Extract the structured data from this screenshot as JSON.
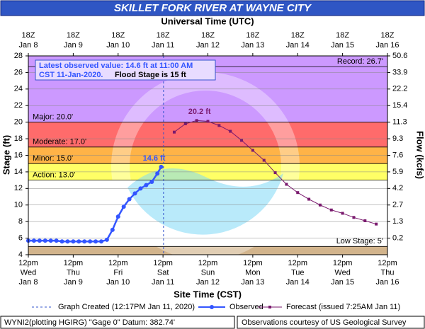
{
  "chart_data": {
    "type": "line",
    "title": "SKILLET FORK RIVER AT WAYNE CITY",
    "top_axis_label": "Universal Time (UTC)",
    "xlabel": "Site Time (CST)",
    "ylabel": "Stage (ft)",
    "y2label": "Flow (kcfs)",
    "xlim": [
      "2020-01-08T12:00",
      "2020-01-16T12:00"
    ],
    "xticks": [
      {
        "value": "2020-01-08T12:00",
        "label": [
          "12pm",
          "Wed",
          "Jan 8"
        ]
      },
      {
        "value": "2020-01-09T12:00",
        "label": [
          "12pm",
          "Thu",
          "Jan 9"
        ]
      },
      {
        "value": "2020-01-10T12:00",
        "label": [
          "12pm",
          "Fri",
          "Jan 10"
        ]
      },
      {
        "value": "2020-01-11T12:00",
        "label": [
          "12pm",
          "Sat",
          "Jan 11"
        ]
      },
      {
        "value": "2020-01-12T12:00",
        "label": [
          "12pm",
          "Sun",
          "Jan 12"
        ]
      },
      {
        "value": "2020-01-13T12:00",
        "label": [
          "12pm",
          "Mon",
          "Jan 13"
        ]
      },
      {
        "value": "2020-01-14T12:00",
        "label": [
          "12pm",
          "Tue",
          "Jan 14"
        ]
      },
      {
        "value": "2020-01-15T12:00",
        "label": [
          "12pm",
          "Wed",
          "Jan 15"
        ]
      },
      {
        "value": "2020-01-16T12:00",
        "label": [
          "12pm",
          "Thu",
          "Jan 16"
        ]
      }
    ],
    "x2ticks": [
      {
        "value": "2020-01-08T12:00",
        "label": [
          "18Z",
          "Jan 8"
        ]
      },
      {
        "value": "2020-01-09T12:00",
        "label": [
          "18Z",
          "Jan 9"
        ]
      },
      {
        "value": "2020-01-10T12:00",
        "label": [
          "18Z",
          "Jan 10"
        ]
      },
      {
        "value": "2020-01-11T12:00",
        "label": [
          "18Z",
          "Jan 11"
        ]
      },
      {
        "value": "2020-01-12T12:00",
        "label": [
          "18Z",
          "Jan 12"
        ]
      },
      {
        "value": "2020-01-13T12:00",
        "label": [
          "18Z",
          "Jan 13"
        ]
      },
      {
        "value": "2020-01-14T12:00",
        "label": [
          "18Z",
          "Jan 14"
        ]
      },
      {
        "value": "2020-01-15T12:00",
        "label": [
          "18Z",
          "Jan 15"
        ]
      },
      {
        "value": "2020-01-16T12:00",
        "label": [
          "18Z",
          "Jan 16"
        ]
      }
    ],
    "ylim": [
      4,
      28
    ],
    "yticks": [
      4,
      6,
      8,
      10,
      12,
      14,
      16,
      18,
      20,
      22,
      24,
      26,
      28
    ],
    "y2ticks": [
      0.2,
      1.3,
      2.7,
      4.2,
      5.9,
      7.6,
      9.3,
      11.3,
      15.4,
      22.2,
      33.9,
      50.6
    ],
    "grid": true,
    "stages": [
      {
        "label": "Record: 26.7'",
        "value": 26.7
      },
      {
        "label": "Major: 20.0'",
        "value": 20,
        "color": "#cc99ff"
      },
      {
        "label": "Moderate: 17.0'",
        "value": 17,
        "color": "#ff6b6b"
      },
      {
        "label": "Minor: 15.0'",
        "value": 15,
        "color": "#ffb347"
      },
      {
        "label": "Action: 13.0'",
        "value": 13,
        "color": "#ffff66"
      },
      {
        "label": "Low Stage: 5'",
        "value": 5,
        "color": "#d2b48c"
      }
    ],
    "created": "2020-01-11T12:17",
    "created_label": "Graph Created (12:17PM Jan 11, 2020)",
    "annotation": [
      "Latest observed value: 14.6 ft at 11:00 AM",
      "CST 11-Jan-2020.",
      "Flood Stage is 15 ft"
    ],
    "series": [
      {
        "name": "Observed",
        "color": "#3355ff",
        "marker": "circle",
        "x": [
          "2020-01-08T12:00",
          "2020-01-08T15:00",
          "2020-01-08T18:00",
          "2020-01-08T21:00",
          "2020-01-09T00:00",
          "2020-01-09T03:00",
          "2020-01-09T06:00",
          "2020-01-09T09:00",
          "2020-01-09T12:00",
          "2020-01-09T15:00",
          "2020-01-09T18:00",
          "2020-01-09T21:00",
          "2020-01-10T00:00",
          "2020-01-10T03:00",
          "2020-01-10T06:00",
          "2020-01-10T09:00",
          "2020-01-10T12:00",
          "2020-01-10T15:00",
          "2020-01-10T18:00",
          "2020-01-10T21:00",
          "2020-01-11T00:00",
          "2020-01-11T03:00",
          "2020-01-11T06:00",
          "2020-01-11T09:00",
          "2020-01-11T11:00"
        ],
        "values": [
          5.7,
          5.7,
          5.7,
          5.7,
          5.7,
          5.7,
          5.6,
          5.6,
          5.6,
          5.6,
          5.6,
          5.6,
          5.6,
          5.6,
          5.8,
          7.0,
          8.6,
          9.8,
          10.7,
          11.4,
          12.0,
          12.4,
          12.8,
          13.8,
          14.6
        ],
        "value_labels": [
          null,
          null,
          null,
          null,
          null,
          null,
          null,
          null,
          null,
          null,
          null,
          null,
          null,
          null,
          null,
          null,
          null,
          null,
          null,
          null,
          null,
          null,
          null,
          null,
          "14.6 ft"
        ]
      },
      {
        "name": "Forecast (issued 7:25AM Jan 11)",
        "color": "#7a1a6e",
        "marker": "square",
        "x": [
          "2020-01-11T18:00",
          "2020-01-12T00:00",
          "2020-01-12T06:00",
          "2020-01-12T12:00",
          "2020-01-12T18:00",
          "2020-01-13T00:00",
          "2020-01-13T06:00",
          "2020-01-13T12:00",
          "2020-01-13T18:00",
          "2020-01-14T00:00",
          "2020-01-14T06:00",
          "2020-01-14T12:00",
          "2020-01-14T18:00",
          "2020-01-15T00:00",
          "2020-01-15T06:00",
          "2020-01-15T12:00",
          "2020-01-15T18:00",
          "2020-01-16T00:00",
          "2020-01-16T06:00"
        ],
        "values": [
          18.8,
          19.8,
          20.2,
          20.1,
          19.6,
          18.9,
          17.8,
          16.6,
          15.4,
          13.9,
          12.5,
          11.5,
          10.7,
          10.0,
          9.4,
          9.0,
          8.5,
          8.1,
          7.7
        ],
        "value_labels": [
          null,
          null,
          "20.2 ft",
          null,
          null,
          null,
          null,
          null,
          null,
          null,
          null,
          null,
          null,
          null,
          null,
          null,
          null,
          null,
          null
        ]
      }
    ],
    "footer_left": "WYNI2(plotting HGIRG) \"Gage 0\" Datum: 382.74'",
    "footer_right": "Observations courtesy of US Geological Survey"
  }
}
